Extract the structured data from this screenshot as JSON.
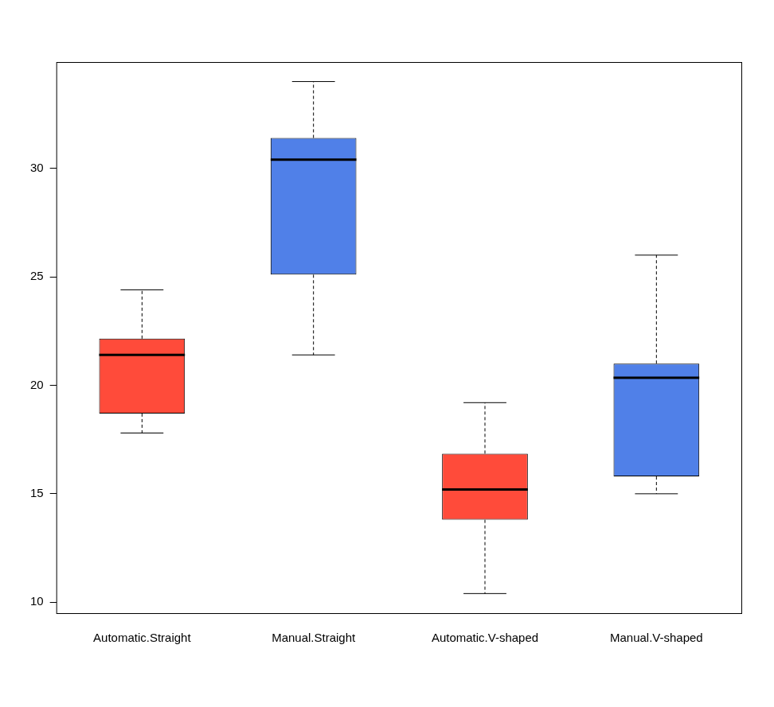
{
  "chart_data": {
    "type": "boxplot",
    "categories": [
      "Automatic.Straight",
      "Manual.Straight",
      "Automatic.V-shaped",
      "Manual.V-shaped"
    ],
    "stats": {
      "min": [
        17.8,
        21.4,
        10.4,
        15.0
      ],
      "q1": [
        18.7,
        25.1,
        13.8,
        15.8
      ],
      "median": [
        21.4,
        30.4,
        15.2,
        20.35
      ],
      "q3": [
        22.15,
        31.4,
        16.85,
        21.0
      ],
      "max": [
        24.4,
        34.0,
        19.2,
        26.0
      ]
    },
    "colors": [
      "#ff4b3a",
      "#5080e8",
      "#ff4b3a",
      "#5080e8"
    ],
    "ylim": [
      9.46,
      34.9
    ],
    "yticks": [
      10,
      15,
      20,
      25,
      30
    ],
    "grid": false
  }
}
